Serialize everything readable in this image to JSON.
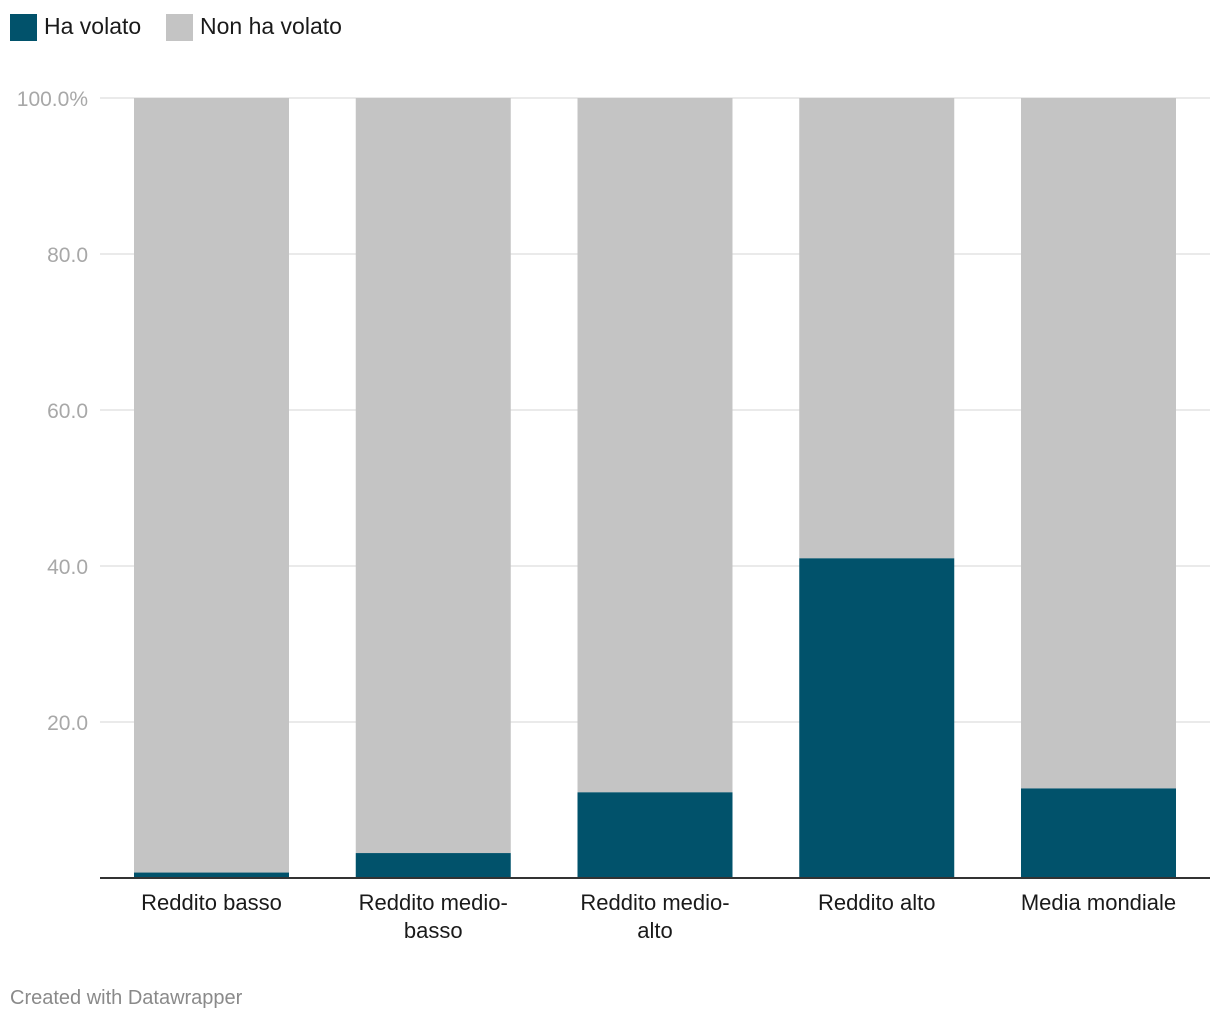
{
  "chart_data": {
    "type": "bar",
    "stacked": true,
    "categories": [
      [
        "Reddito basso"
      ],
      [
        "Reddito medio-",
        "basso"
      ],
      [
        "Reddito medio-",
        "alto"
      ],
      [
        "Reddito alto"
      ],
      [
        "Media mondiale"
      ]
    ],
    "series": [
      {
        "name": "Ha volato",
        "color": "#01526b",
        "values": [
          0.7,
          3.2,
          11.0,
          41.0,
          11.5
        ]
      },
      {
        "name": "Non ha volato",
        "color": "#c4c4c4",
        "values": [
          99.3,
          96.8,
          89.0,
          59.0,
          88.5
        ]
      }
    ],
    "y_ticks": [
      {
        "value": 100,
        "label": "100.0%"
      },
      {
        "value": 80,
        "label": "80.0"
      },
      {
        "value": 60,
        "label": "60.0"
      },
      {
        "value": 40,
        "label": "40.0"
      },
      {
        "value": 20,
        "label": "20.0"
      }
    ],
    "ylim": [
      0,
      100
    ],
    "grid": true,
    "legend_position": "top-left"
  },
  "footer": {
    "credit": "Created with Datawrapper"
  }
}
